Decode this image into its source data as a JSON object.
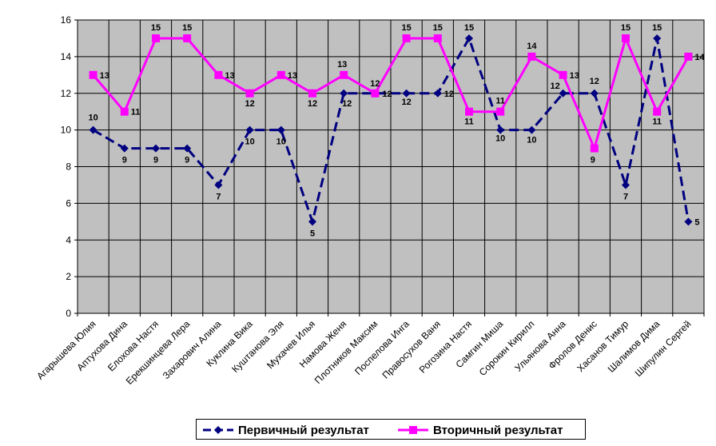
{
  "chart_data": {
    "type": "line",
    "categories": [
      "Агарышева Юлия",
      "Аптухова Дина",
      "Елохова Настя",
      "Ерекшинцева Лера",
      "Захарович Алина",
      "Куклина Вика",
      "Куштанова Эля",
      "Мухачев Илья",
      "Намова Женя",
      "Плотников Максим",
      "Поспелова Инга",
      "Правосухов Ваня",
      "Рогозина Настя",
      "Самгин Миша",
      "Сорокин Кирилл",
      "Ульянова Анна",
      "Фролов Денис",
      "Хасанов Тимур",
      "Шалимов Дима",
      "Шипулин Сергей"
    ],
    "series": [
      {
        "name": "Первичный результат",
        "color": "#000080",
        "style": "dashed",
        "marker": "diamond",
        "values": [
          10,
          9,
          9,
          9,
          7,
          10,
          10,
          5,
          12,
          12,
          12,
          12,
          15,
          10,
          10,
          12,
          12,
          7,
          15,
          5
        ]
      },
      {
        "name": "Вторичный результат",
        "color": "#FF00FF",
        "style": "solid",
        "marker": "square",
        "values": [
          13,
          11,
          15,
          15,
          13,
          12,
          13,
          12,
          13,
          12,
          15,
          15,
          11,
          11,
          14,
          13,
          9,
          15,
          11,
          14
        ]
      }
    ],
    "ylim": [
      0,
      16
    ],
    "yticks": [
      "0",
      "2",
      "4",
      "6",
      "8",
      "10",
      "12",
      "14",
      "16"
    ],
    "grid": true,
    "plot_background": "#C0C0C0",
    "legend_position": "bottom"
  }
}
